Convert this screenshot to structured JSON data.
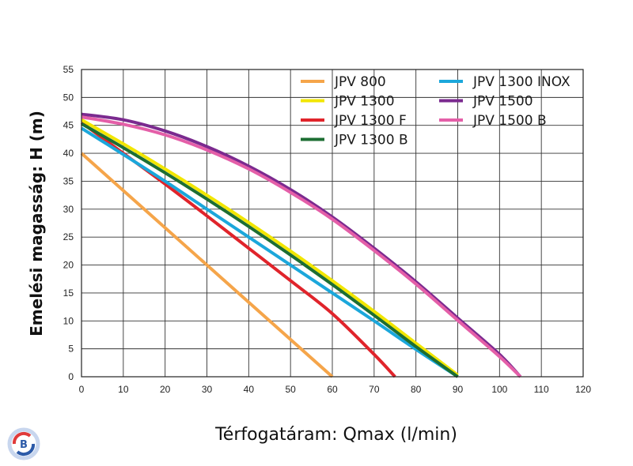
{
  "chart_data": {
    "type": "line",
    "title": "",
    "xlabel": "Térfogatáram: Qmax (l/min)",
    "ylabel": "Emelési magasság: H (m)",
    "xlim": [
      0,
      120
    ],
    "ylim": [
      0,
      55
    ],
    "xticks": [
      0,
      10,
      20,
      30,
      40,
      50,
      60,
      70,
      80,
      90,
      100,
      110,
      120
    ],
    "yticks": [
      0,
      5,
      10,
      15,
      20,
      25,
      30,
      35,
      40,
      45,
      50,
      55
    ],
    "grid": true,
    "legend_position": "top-right",
    "series": [
      {
        "name": "JPV 800",
        "color": "#F5A54A",
        "points": [
          [
            0,
            40
          ],
          [
            60,
            0
          ]
        ]
      },
      {
        "name": "JPV 1300",
        "color": "#F2E600",
        "points": [
          [
            0,
            46
          ],
          [
            10,
            41.7
          ],
          [
            20,
            37.2
          ],
          [
            30,
            32.5
          ],
          [
            40,
            27.6
          ],
          [
            50,
            22.5
          ],
          [
            60,
            17.2
          ],
          [
            70,
            11.7
          ],
          [
            80,
            6.0
          ],
          [
            90,
            0.3
          ]
        ]
      },
      {
        "name": "JPV 1300 F",
        "color": "#E0242B",
        "points": [
          [
            0,
            45.5
          ],
          [
            10,
            40
          ],
          [
            20,
            34.5
          ],
          [
            30,
            28.8
          ],
          [
            40,
            23
          ],
          [
            50,
            17.2
          ],
          [
            60,
            11.3
          ],
          [
            70,
            4
          ],
          [
            75,
            0
          ]
        ]
      },
      {
        "name": "JPV 1300 B",
        "color": "#1D6E33",
        "points": [
          [
            0,
            45.3
          ],
          [
            10,
            41
          ],
          [
            20,
            36.5
          ],
          [
            30,
            31.8
          ],
          [
            40,
            26.9
          ],
          [
            50,
            21.8
          ],
          [
            60,
            16.5
          ],
          [
            70,
            11
          ],
          [
            80,
            5.4
          ],
          [
            90,
            0
          ]
        ]
      },
      {
        "name": "JPV 1300 INOX",
        "color": "#1BA7DB",
        "points": [
          [
            0,
            44.5
          ],
          [
            10,
            39.8
          ],
          [
            20,
            35
          ],
          [
            30,
            30
          ],
          [
            40,
            25
          ],
          [
            50,
            20
          ],
          [
            60,
            15
          ],
          [
            70,
            10
          ],
          [
            80,
            4.9
          ],
          [
            90,
            0
          ]
        ]
      },
      {
        "name": "JPV 1500",
        "color": "#7B2A8F",
        "points": [
          [
            0,
            47
          ],
          [
            10,
            46
          ],
          [
            20,
            44
          ],
          [
            30,
            41.2
          ],
          [
            40,
            37.7
          ],
          [
            50,
            33.5
          ],
          [
            60,
            28.6
          ],
          [
            70,
            23
          ],
          [
            80,
            17
          ],
          [
            90,
            10.5
          ],
          [
            100,
            4
          ],
          [
            105,
            0
          ]
        ]
      },
      {
        "name": "JPV 1500 B",
        "color": "#E45FA8",
        "points": [
          [
            0,
            46.5
          ],
          [
            10,
            45.2
          ],
          [
            20,
            43.3
          ],
          [
            30,
            40.6
          ],
          [
            40,
            37.2
          ],
          [
            50,
            33
          ],
          [
            60,
            28.2
          ],
          [
            70,
            22.6
          ],
          [
            80,
            16.6
          ],
          [
            90,
            10.1
          ],
          [
            100,
            3.6
          ],
          [
            105,
            0
          ]
        ]
      }
    ]
  }
}
